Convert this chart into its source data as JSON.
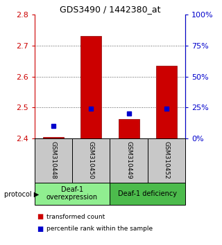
{
  "title": "GDS3490 / 1442380_at",
  "samples": [
    "GSM310448",
    "GSM310450",
    "GSM310449",
    "GSM310452"
  ],
  "transformed_counts": [
    2.404,
    2.732,
    2.462,
    2.636
  ],
  "percentile_ranks_pct": [
    10,
    24,
    20,
    24
  ],
  "ylim": [
    2.4,
    2.8
  ],
  "yticks_left": [
    2.4,
    2.5,
    2.6,
    2.7,
    2.8
  ],
  "yticks_right": [
    0,
    25,
    50,
    75,
    100
  ],
  "ylabel_left_color": "#cc0000",
  "ylabel_right_color": "#0000cc",
  "bar_color": "#cc0000",
  "percentile_color": "#0000cc",
  "bar_bottom": 2.4,
  "groups": [
    {
      "label": "Deaf-1\noverexpression",
      "samples": [
        0,
        1
      ],
      "color": "#90EE90"
    },
    {
      "label": "Deaf-1 deficiency",
      "samples": [
        2,
        3
      ],
      "color": "#4CBB4C"
    }
  ],
  "protocol_label": "protocol",
  "sample_bg_color": "#c8c8c8",
  "grid_color": "#555555",
  "legend_red_label": "transformed count",
  "legend_blue_label": "percentile rank within the sample"
}
